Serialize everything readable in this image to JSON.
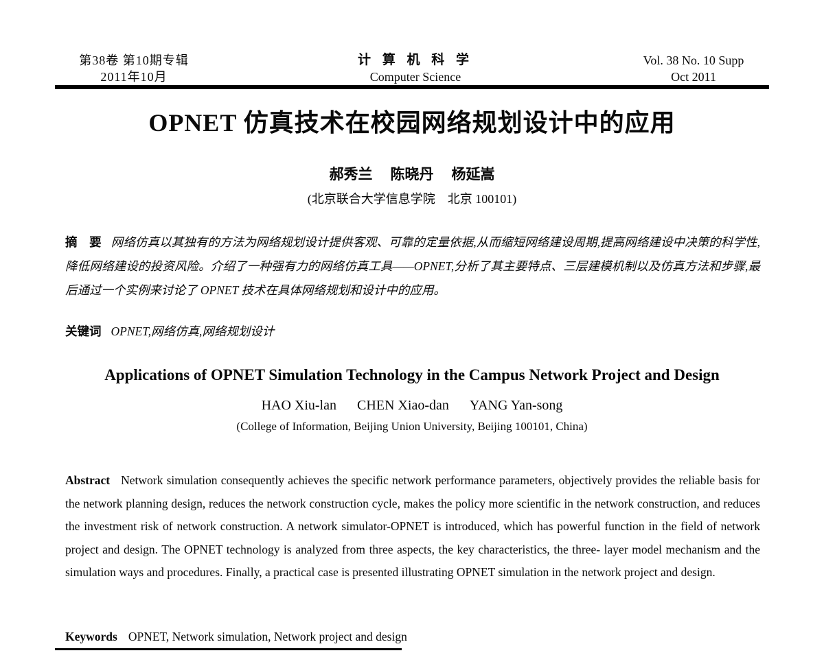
{
  "journal_header": {
    "left_line1": "第38卷  第10期专辑",
    "left_line2": "2011年10月",
    "center_line1": "计 算 机 科 学",
    "center_line2": "Computer  Science",
    "right_line1": "Vol. 38 No. 10 Supp",
    "right_line2": "Oct 2011"
  },
  "article": {
    "title_zh": "OPNET 仿真技术在校园网络规划设计中的应用",
    "authors_zh": [
      "郝秀兰",
      "陈晓丹",
      "杨延嵩"
    ],
    "affiliation_zh": "(北京联合大学信息学院　北京 100101)",
    "abstract_zh_label": "摘　要",
    "abstract_zh": "网络仿真以其独有的方法为网络规划设计提供客观、可靠的定量依据,从而缩短网络建设周期,提高网络建设中决策的科学性,降低网络建设的投资风险。介绍了一种强有力的网络仿真工具——OPNET,分析了其主要特点、三层建模机制以及仿真方法和步骤,最后通过一个实例来讨论了 OPNET 技术在具体网络规划和设计中的应用。",
    "keywords_zh_label": "关键词",
    "keywords_zh": "OPNET,网络仿真,网络规划设计",
    "title_en": "Applications of OPNET Simulation Technology in the Campus Network Project and Design",
    "authors_en": [
      "HAO Xiu-lan",
      "CHEN Xiao-dan",
      "YANG Yan-song"
    ],
    "affiliation_en": "(College of Information, Beijing Union University, Beijing 100101, China)",
    "abstract_en_label": "Abstract",
    "abstract_en": "Network simulation consequently achieves the specific network performance parameters, objectively provides the reliable basis for the network planning design, reduces the network construction cycle, makes the policy more scientific in the network construction, and reduces the investment risk of network construction. A network simulator-OPNET is introduced, which has powerful function in the field of network project and design. The OPNET technology is analyzed from three aspects, the key characteristics, the three- layer model mechanism and the simulation ways and procedures. Finally, a practical case is presented illustrating OPNET simulation in the network project and design.",
    "keywords_en_label": "Keywords",
    "keywords_en": "OPNET, Network simulation, Network project and design"
  }
}
